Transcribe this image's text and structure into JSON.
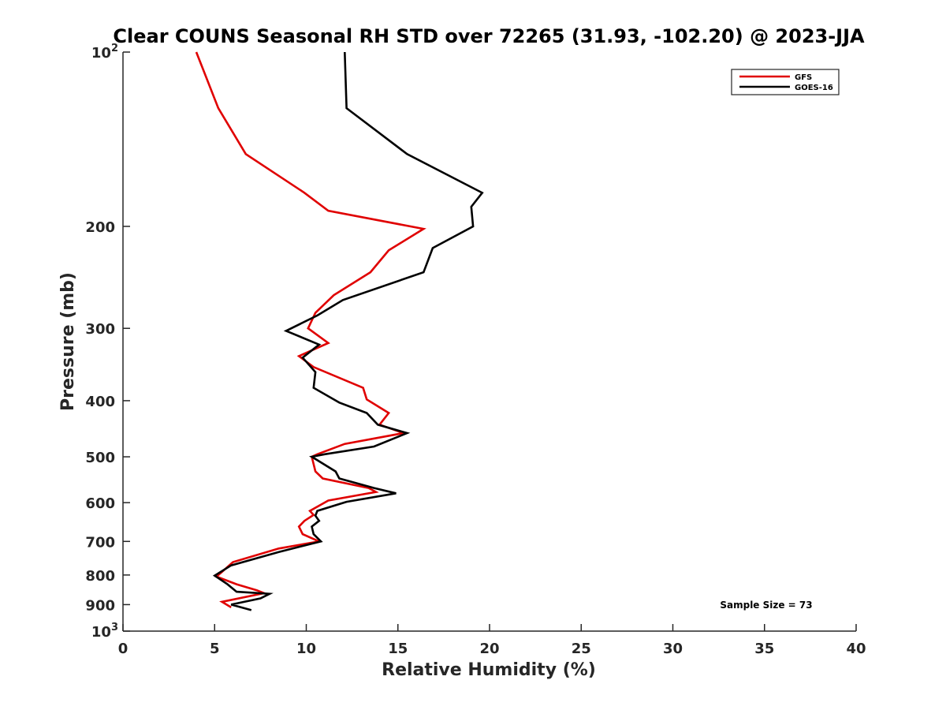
{
  "chart_data": {
    "type": "line",
    "title": "Clear COUNS Seasonal RH STD over 72265 (31.93, -102.20) @ 2023-JJA",
    "xlabel": "Relative Humidity (%)",
    "ylabel": "Pressure (mb)",
    "xlim": [
      0,
      40
    ],
    "ylim": [
      100,
      1000
    ],
    "yscale": "log",
    "y_reversed": true,
    "x_ticks": [
      0,
      5,
      10,
      15,
      20,
      25,
      30,
      35,
      40
    ],
    "y_ticks": [
      {
        "value": 100,
        "label": "10",
        "sup": "2"
      },
      {
        "value": 200,
        "label": "200"
      },
      {
        "value": 300,
        "label": "300"
      },
      {
        "value": 400,
        "label": "400"
      },
      {
        "value": 500,
        "label": "500"
      },
      {
        "value": 600,
        "label": "600"
      },
      {
        "value": 700,
        "label": "700"
      },
      {
        "value": 800,
        "label": "800"
      },
      {
        "value": 900,
        "label": "900"
      },
      {
        "value": 1000,
        "label": "10",
        "sup": "3"
      }
    ],
    "legend_position": "top-right",
    "annotation": "Sample Size = 73",
    "series": [
      {
        "name": "GFS",
        "color": "#e00000",
        "points": [
          [
            4.0,
            100
          ],
          [
            5.2,
            125
          ],
          [
            6.7,
            150
          ],
          [
            9.9,
            175
          ],
          [
            11.2,
            188
          ],
          [
            16.4,
            202
          ],
          [
            14.5,
            220
          ],
          [
            13.5,
            240
          ],
          [
            11.5,
            263
          ],
          [
            10.5,
            282
          ],
          [
            10.1,
            300
          ],
          [
            11.2,
            318
          ],
          [
            9.6,
            335
          ],
          [
            10.4,
            350
          ],
          [
            13.1,
            380
          ],
          [
            13.3,
            398
          ],
          [
            14.5,
            420
          ],
          [
            14.0,
            440
          ],
          [
            15.3,
            455
          ],
          [
            12.1,
            475
          ],
          [
            10.6,
            495
          ],
          [
            10.3,
            500
          ],
          [
            10.5,
            530
          ],
          [
            10.9,
            545
          ],
          [
            13.4,
            566
          ],
          [
            13.8,
            575
          ],
          [
            11.2,
            595
          ],
          [
            10.2,
            620
          ],
          [
            10.4,
            630
          ],
          [
            9.9,
            645
          ],
          [
            9.6,
            660
          ],
          [
            9.8,
            680
          ],
          [
            10.7,
            700
          ],
          [
            8.5,
            720
          ],
          [
            6.0,
            760
          ],
          [
            5.4,
            790
          ],
          [
            5.1,
            805
          ],
          [
            6.2,
            830
          ],
          [
            7.3,
            850
          ],
          [
            7.7,
            860
          ],
          [
            5.4,
            890
          ],
          [
            5.9,
            910
          ]
        ]
      },
      {
        "name": "GOES-16",
        "color": "#000000",
        "points": [
          [
            12.1,
            100
          ],
          [
            12.2,
            125
          ],
          [
            15.5,
            150
          ],
          [
            19.6,
            175
          ],
          [
            19.0,
            185
          ],
          [
            19.1,
            200
          ],
          [
            16.9,
            218
          ],
          [
            16.4,
            240
          ],
          [
            12.0,
            268
          ],
          [
            10.6,
            285
          ],
          [
            8.9,
            303
          ],
          [
            10.7,
            320
          ],
          [
            9.8,
            337
          ],
          [
            10.5,
            357
          ],
          [
            10.4,
            380
          ],
          [
            11.8,
            403
          ],
          [
            13.3,
            420
          ],
          [
            13.9,
            440
          ],
          [
            15.5,
            455
          ],
          [
            13.7,
            480
          ],
          [
            11.0,
            495
          ],
          [
            10.3,
            500
          ],
          [
            11.6,
            530
          ],
          [
            11.8,
            545
          ],
          [
            13.7,
            566
          ],
          [
            14.9,
            578
          ],
          [
            12.2,
            598
          ],
          [
            10.6,
            620
          ],
          [
            10.5,
            632
          ],
          [
            10.7,
            645
          ],
          [
            10.3,
            660
          ],
          [
            10.4,
            680
          ],
          [
            10.8,
            700
          ],
          [
            8.5,
            730
          ],
          [
            5.9,
            770
          ],
          [
            5.0,
            802
          ],
          [
            5.7,
            830
          ],
          [
            6.2,
            855
          ],
          [
            8.0,
            862
          ],
          [
            7.5,
            878
          ],
          [
            5.9,
            900
          ],
          [
            7.0,
            920
          ]
        ]
      }
    ]
  }
}
